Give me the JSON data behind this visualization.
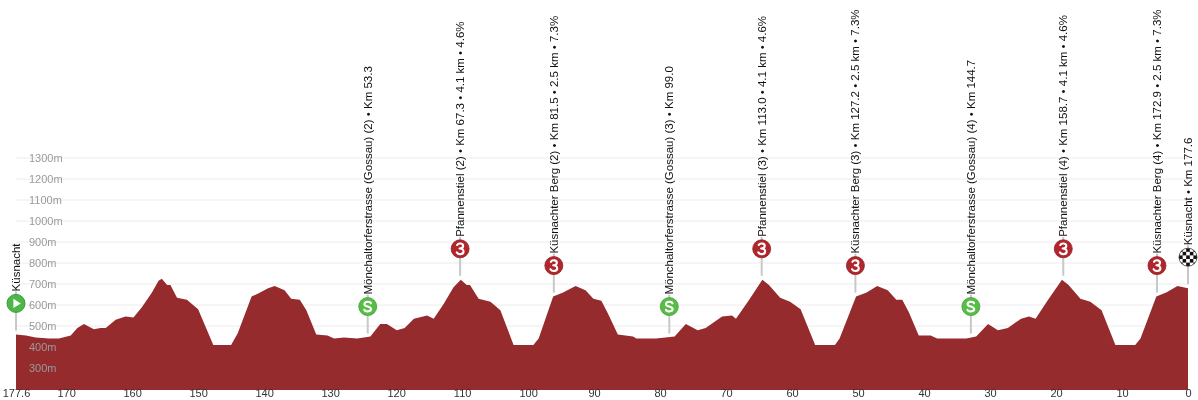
{
  "chart_data": {
    "type": "area",
    "color": "#962b2e",
    "x": [
      177.6,
      176.1,
      174.6,
      172.6,
      171.1,
      169.3,
      168.3,
      167.3,
      165.8,
      164.8,
      164.0,
      162.5,
      161.0,
      159.8,
      158.5,
      157.0,
      156.0,
      155.5,
      154.7,
      154.2,
      153.2,
      151.7,
      150.0,
      147.7,
      145.0,
      144.0,
      141.9,
      140.9,
      139.4,
      138.4,
      136.9,
      135.9,
      134.6,
      133.6,
      132.1,
      130.4,
      129.4,
      127.9,
      125.9,
      123.9,
      122.4,
      121.4,
      119.9,
      118.7,
      117.3,
      115.3,
      114.3,
      112.8,
      111.3,
      110.2,
      109.3,
      108.8,
      107.5,
      105.7,
      104.2,
      102.2,
      99.2,
      98.4,
      96.2,
      94.7,
      92.8,
      91.3,
      90.1,
      88.9,
      87.9,
      86.4,
      84.1,
      83.6,
      80.6,
      77.8,
      76.1,
      74.3,
      73.1,
      70.6,
      69.1,
      68.5,
      66.6,
      64.5,
      63.5,
      61.8,
      60.3,
      58.7,
      56.5,
      53.5,
      52.8,
      50.3,
      48.7,
      47.1,
      45.5,
      44.2,
      43.3,
      42.3,
      40.8,
      39.0,
      38.0,
      36.0,
      33.6,
      32.1,
      30.3,
      28.8,
      27.3,
      25.3,
      24.1,
      23.1,
      21.3,
      19.1,
      18.1,
      16.3,
      14.8,
      13.1,
      11.0,
      8.0,
      7.2,
      4.8,
      3.3,
      1.6,
      0
    ],
    "values": [
      460,
      455,
      445,
      440,
      440,
      455,
      490,
      510,
      485,
      490,
      490,
      530,
      545,
      540,
      590,
      660,
      715,
      725,
      695,
      695,
      635,
      625,
      580,
      410,
      410,
      465,
      640,
      655,
      680,
      690,
      670,
      630,
      625,
      575,
      460,
      455,
      440,
      445,
      440,
      450,
      510,
      510,
      480,
      490,
      535,
      550,
      535,
      605,
      685,
      720,
      695,
      695,
      630,
      615,
      575,
      410,
      410,
      440,
      640,
      660,
      690,
      670,
      630,
      620,
      560,
      460,
      450,
      440,
      440,
      450,
      510,
      480,
      490,
      545,
      550,
      535,
      620,
      720,
      695,
      635,
      615,
      580,
      410,
      410,
      440,
      640,
      660,
      690,
      670,
      625,
      625,
      565,
      455,
      455,
      440,
      440,
      440,
      450,
      510,
      480,
      490,
      535,
      545,
      535,
      620,
      720,
      695,
      630,
      615,
      575,
      410,
      410,
      440,
      640,
      660,
      690,
      680
    ],
    "xlim": [
      177.6,
      0
    ],
    "xticks": [
      177.6,
      170,
      160,
      150,
      140,
      130,
      120,
      110,
      100,
      90,
      80,
      70,
      60,
      50,
      40,
      30,
      20,
      10,
      0
    ],
    "ylim": [
      200,
      1300
    ],
    "yticks": [
      {
        "value": 300,
        "label": "300m"
      },
      {
        "value": 400,
        "label": "400m"
      },
      {
        "value": 500,
        "label": "500m"
      },
      {
        "value": 600,
        "label": "600m"
      },
      {
        "value": 700,
        "label": "700m"
      },
      {
        "value": 800,
        "label": "800m"
      },
      {
        "value": 900,
        "label": "900m"
      },
      {
        "value": 1000,
        "label": "1000m"
      },
      {
        "value": 1100,
        "label": "1100m"
      },
      {
        "value": 1200,
        "label": "1200m"
      },
      {
        "value": 1300,
        "label": "1300m"
      }
    ],
    "grid": "y",
    "annotations": [
      {
        "text": "Küsnacht",
        "x": 177.6,
        "y": 460
      },
      {
        "text": "Mönchaltorferstrasse (Gossau) (2) • Km 53.3",
        "x": 124.3,
        "y": 445
      },
      {
        "text": "Pfannenstiel (2) • Km 67.3 • 4.1 km • 4.6%",
        "x": 110.3,
        "y": 720
      },
      {
        "text": "Küsnachter Berg (2) • Km 81.5 • 2.5 km • 7.3%",
        "x": 96.1,
        "y": 640
      },
      {
        "text": "Mönchaltorferstrasse (Gossau) (3) • Km 99.0",
        "x": 78.6,
        "y": 445
      },
      {
        "text": "Pfannenstiel (3) • Km 113.0 • 4.1 km • 4.6%",
        "x": 64.6,
        "y": 720
      },
      {
        "text": "Küsnachter Berg (3) • Km 127.2 • 2.5 km • 7.3%",
        "x": 50.4,
        "y": 640
      },
      {
        "text": "Mönchaltorferstrasse (Gossau) (4) • Km 144.7",
        "x": 32.9,
        "y": 445
      },
      {
        "text": "Pfannenstiel (4) • Km 158.7 • 4.1 km • 4.6%",
        "x": 18.9,
        "y": 720
      },
      {
        "text": "Küsnachter Berg (4) • Km 172.9 • 2.5 km • 7.3%",
        "x": 4.7,
        "y": 640
      },
      {
        "text": "Küsnacht • Km 177.6",
        "x": 0,
        "y": 680
      }
    ]
  }
}
